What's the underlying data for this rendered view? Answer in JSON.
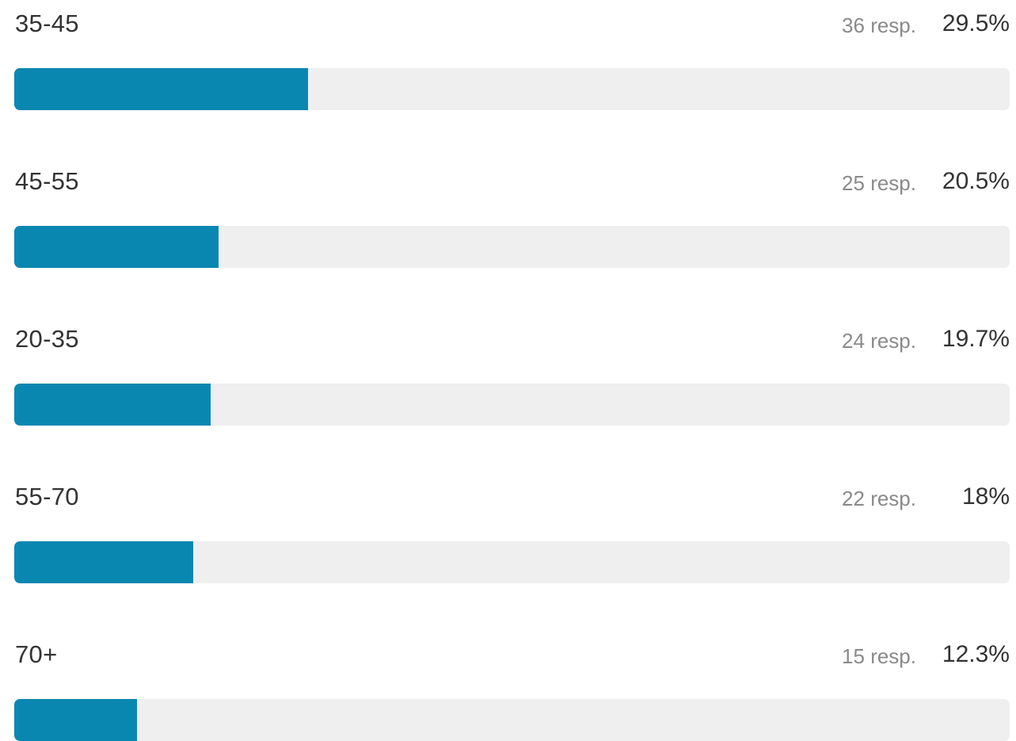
{
  "chart_data": {
    "type": "bar",
    "orientation": "horizontal",
    "categories": [
      "35-45",
      "45-55",
      "20-35",
      "55-70",
      "70+"
    ],
    "values": [
      29.5,
      20.5,
      19.7,
      18,
      12.3
    ],
    "responses": [
      36,
      25,
      24,
      22,
      15
    ],
    "value_labels": [
      "29.5%",
      "20.5%",
      "19.7%",
      "18%",
      "12.3%"
    ],
    "response_labels": [
      "36 resp.",
      "25 resp.",
      "24 resp.",
      "22 resp.",
      "15 resp."
    ],
    "xlim": [
      0,
      100
    ],
    "grid": false,
    "legend": "none"
  },
  "colors": {
    "bar_fill": "#0a87b0",
    "track": "#efefef",
    "label_text": "#333333",
    "muted_text": "#8a8a8a"
  }
}
